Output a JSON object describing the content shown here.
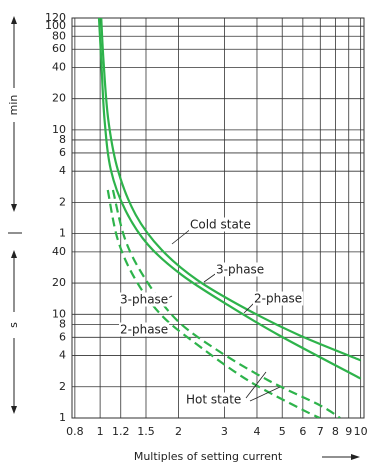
{
  "chart_data": {
    "type": "line",
    "x_label": "Multiples of setting current",
    "y_units": [
      "min",
      "s"
    ],
    "annotations": [
      "Cold state",
      "Hot state"
    ],
    "xscale": "log",
    "yscale": "log",
    "grid": true,
    "xlim": [
      0.78,
      10.3
    ],
    "xticks": [
      0.8,
      1,
      1.2,
      1.5,
      2,
      3,
      4,
      5,
      6,
      7,
      8,
      9,
      10
    ],
    "ylim": [
      1,
      7200
    ],
    "yticks": [
      {
        "value": 7200,
        "label": "120"
      },
      {
        "value": 6000,
        "label": "100"
      },
      {
        "value": 4800,
        "label": "80"
      },
      {
        "value": 3600,
        "label": "60"
      },
      {
        "value": 2400,
        "label": "40"
      },
      {
        "value": 1200,
        "label": "20"
      },
      {
        "value": 600,
        "label": "10"
      },
      {
        "value": 480,
        "label": "8"
      },
      {
        "value": 360,
        "label": "6"
      },
      {
        "value": 240,
        "label": "4"
      },
      {
        "value": 120,
        "label": "2"
      },
      {
        "value": 60,
        "label": "1"
      },
      40,
      20,
      10,
      8,
      6,
      4,
      2,
      1
    ],
    "series": [
      {
        "name": "3-phase",
        "color": "#2eb34b",
        "dashed": false,
        "x": [
          1.01,
          1.03,
          1.075,
          1.17,
          1.37,
          1.72,
          2.36,
          3.7,
          5.8,
          10
        ],
        "values": [
          7200,
          2830,
          750,
          246,
          91,
          42,
          21.4,
          11,
          6.3,
          3.6
        ]
      },
      {
        "name": "2-phase",
        "color": "#2eb34b",
        "dashed": false,
        "x": [
          0.99,
          1.01,
          1.04,
          1.1,
          1.25,
          1.53,
          2.06,
          3.09,
          4.85,
          10
        ],
        "values": [
          7200,
          2830,
          750,
          246,
          101,
          46.6,
          23.9,
          12.3,
          6.3,
          2.4
        ]
      },
      {
        "name": "3-phase",
        "color": "#2eb34b",
        "dashed": true,
        "x": [
          1.12,
          1.25,
          1.5,
          1.97,
          2.82,
          4.43,
          6.96,
          8.34
        ],
        "values": [
          158,
          52,
          21.4,
          8.8,
          4.5,
          2.3,
          1.33,
          1
        ]
      },
      {
        "name": "2-phase",
        "color": "#2eb34b",
        "dashed": true,
        "x": [
          1.07,
          1.17,
          1.37,
          1.72,
          2.36,
          3.7,
          5.8,
          6.96
        ],
        "values": [
          158,
          52,
          21.4,
          9.8,
          5.1,
          2.3,
          1.25,
          1
        ]
      }
    ]
  }
}
